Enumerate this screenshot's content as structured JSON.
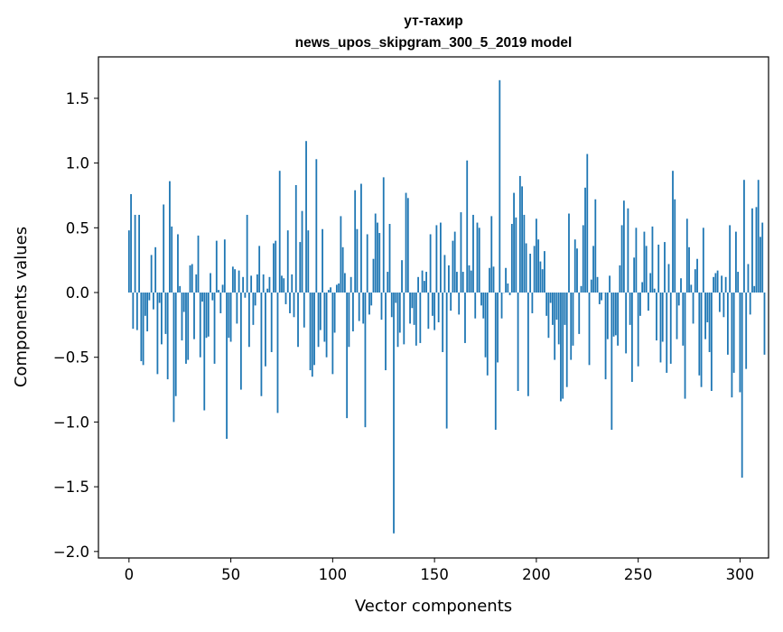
{
  "chart_data": {
    "type": "bar",
    "title_line1": "ут-тахир",
    "title_line2": "news_upos_skipgram_300_5_2019 model",
    "xlabel": "Vector components",
    "ylabel": "Components values",
    "xlim": [
      -15,
      314
    ],
    "ylim": [
      -2.05,
      1.82
    ],
    "xticks": [
      0,
      50,
      100,
      150,
      200,
      250,
      300
    ],
    "xtick_labels": [
      "0",
      "50",
      "100",
      "150",
      "200",
      "250",
      "300"
    ],
    "yticks": [
      -2.0,
      -1.5,
      -1.0,
      -0.5,
      0.0,
      0.5,
      1.0,
      1.5
    ],
    "ytick_labels": [
      "−2.0",
      "−1.5",
      "−1.0",
      "−0.5",
      "0.0",
      "0.5",
      "1.0",
      "1.5"
    ],
    "bar_color": "#1f77b4",
    "values": [
      0.48,
      0.76,
      -0.28,
      0.6,
      -0.29,
      0.6,
      -0.53,
      -0.56,
      -0.18,
      -0.3,
      -0.06,
      0.29,
      -0.13,
      0.35,
      -0.63,
      -0.08,
      -0.4,
      0.68,
      -0.32,
      -0.67,
      0.86,
      0.51,
      -1.0,
      -0.8,
      0.45,
      0.05,
      -0.37,
      -0.15,
      -0.55,
      -0.52,
      0.21,
      0.22,
      -0.36,
      0.14,
      0.44,
      -0.5,
      -0.07,
      -0.91,
      -0.35,
      -0.34,
      0.15,
      -0.06,
      -0.55,
      0.4,
      0.02,
      -0.16,
      0.06,
      0.41,
      -1.13,
      -0.35,
      -0.38,
      0.2,
      0.18,
      -0.24,
      0.17,
      -0.75,
      0.12,
      -0.04,
      0.6,
      -0.42,
      0.13,
      -0.25,
      -0.1,
      0.14,
      0.36,
      -0.8,
      0.14,
      -0.57,
      0.03,
      0.12,
      -0.46,
      0.38,
      0.4,
      -0.93,
      0.94,
      0.13,
      0.11,
      -0.09,
      0.48,
      -0.16,
      0.14,
      -0.19,
      0.83,
      -0.42,
      0.39,
      0.63,
      -0.27,
      1.17,
      0.48,
      -0.6,
      -0.65,
      -0.56,
      1.03,
      -0.42,
      -0.29,
      0.49,
      -0.38,
      -0.5,
      0.02,
      0.04,
      -0.63,
      -0.31,
      0.06,
      0.07,
      0.59,
      0.35,
      0.15,
      -0.97,
      -0.42,
      0.12,
      -0.3,
      0.79,
      0.49,
      -0.22,
      0.84,
      -0.24,
      -1.04,
      0.45,
      -0.17,
      -0.1,
      0.26,
      0.61,
      0.54,
      0.46,
      -0.21,
      0.89,
      -0.6,
      0.16,
      0.53,
      -0.19,
      -1.86,
      -0.08,
      -0.42,
      -0.31,
      0.25,
      -0.4,
      0.77,
      0.73,
      -0.24,
      -0.12,
      -0.25,
      -0.41,
      0.12,
      -0.39,
      0.17,
      0.09,
      0.16,
      -0.28,
      0.45,
      -0.18,
      -0.29,
      0.52,
      -0.23,
      0.54,
      -0.46,
      0.29,
      -1.05,
      0.21,
      -0.14,
      0.4,
      0.47,
      0.16,
      -0.17,
      0.62,
      0.16,
      -0.39,
      1.02,
      0.21,
      0.17,
      0.6,
      -0.2,
      0.54,
      0.5,
      -0.1,
      -0.2,
      -0.5,
      -0.64,
      0.19,
      0.59,
      0.2,
      -1.06,
      -0.54,
      1.64,
      -0.2,
      0.0,
      0.19,
      0.07,
      -0.02,
      0.53,
      0.77,
      0.58,
      -0.76,
      0.9,
      0.82,
      0.6,
      0.38,
      -0.8,
      0.3,
      -0.16,
      0.36,
      0.57,
      0.41,
      0.24,
      0.18,
      0.32,
      -0.18,
      -0.35,
      -0.08,
      -0.25,
      -0.52,
      -0.21,
      -0.4,
      -0.84,
      -0.82,
      -0.25,
      -0.73,
      0.61,
      -0.52,
      -0.41,
      0.41,
      0.34,
      -0.32,
      0.05,
      0.52,
      0.81,
      1.07,
      -0.56,
      0.1,
      0.36,
      0.72,
      0.12,
      -0.09,
      -0.06,
      0.0,
      -0.67,
      -0.36,
      0.13,
      -1.06,
      -0.34,
      -0.33,
      -0.41,
      0.21,
      0.52,
      0.71,
      -0.47,
      0.65,
      -0.25,
      -0.69,
      0.27,
      0.5,
      -0.57,
      -0.18,
      0.08,
      0.47,
      0.36,
      -0.14,
      0.15,
      0.51,
      0.03,
      -0.37,
      0.37,
      -0.54,
      -0.38,
      0.39,
      -0.62,
      0.22,
      -0.55,
      0.94,
      0.72,
      -0.36,
      -0.1,
      0.11,
      -0.41,
      -0.82,
      0.57,
      0.35,
      0.06,
      -0.24,
      0.18,
      0.26,
      -0.64,
      -0.73,
      0.5,
      -0.36,
      -0.23,
      -0.46,
      -0.76,
      0.12,
      0.15,
      0.17,
      -0.15,
      0.13,
      -0.19,
      0.12,
      -0.48,
      0.52,
      -0.81,
      -0.62,
      0.47,
      0.16,
      -0.77,
      -1.43,
      0.87,
      -0.59,
      0.22,
      -0.17,
      0.65,
      0.05,
      0.66,
      0.87,
      0.43,
      0.54,
      -0.48
    ]
  }
}
